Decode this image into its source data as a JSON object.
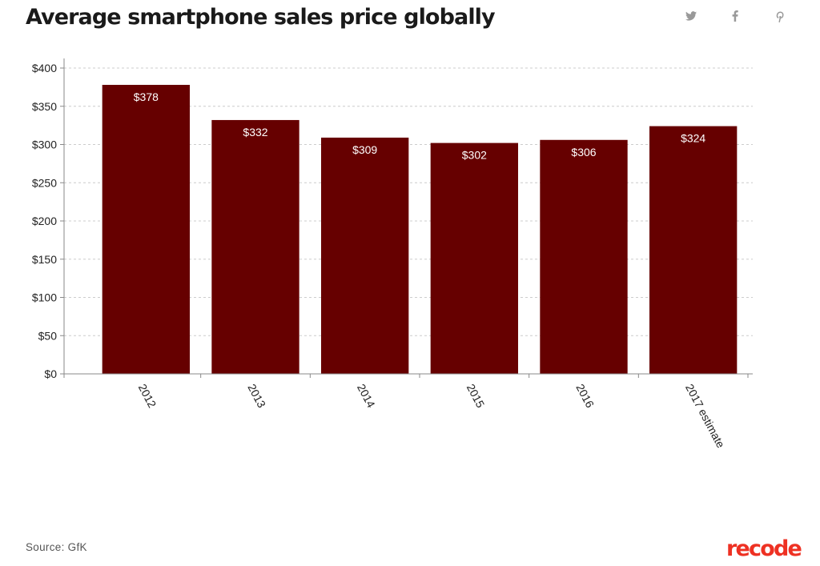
{
  "header": {
    "title": "Average smartphone sales price globally",
    "share_icons": [
      "twitter-icon",
      "facebook-icon",
      "pinterest-icon"
    ]
  },
  "chart_data": {
    "type": "bar",
    "title": "Average smartphone sales price globally",
    "categories": [
      "2012",
      "2013",
      "2014",
      "2015",
      "2016",
      "2017 estimate"
    ],
    "values": [
      378,
      332,
      309,
      302,
      306,
      324
    ],
    "value_labels": [
      "$378",
      "$332",
      "$309",
      "$302",
      "$306",
      "$324"
    ],
    "ylim": [
      0,
      400
    ],
    "yticks": [
      0,
      50,
      100,
      150,
      200,
      250,
      300,
      350,
      400
    ],
    "ytick_labels": [
      "$0",
      "$50",
      "$100",
      "$150",
      "$200",
      "$250",
      "$300",
      "$350",
      "$400"
    ],
    "xlabel": "",
    "ylabel": "",
    "grid": true,
    "bar_color": "#660000",
    "label_color": "#ffffff"
  },
  "footer": {
    "source": "Source: GfK",
    "brand": "recode",
    "brand_color": "#ee3123"
  }
}
